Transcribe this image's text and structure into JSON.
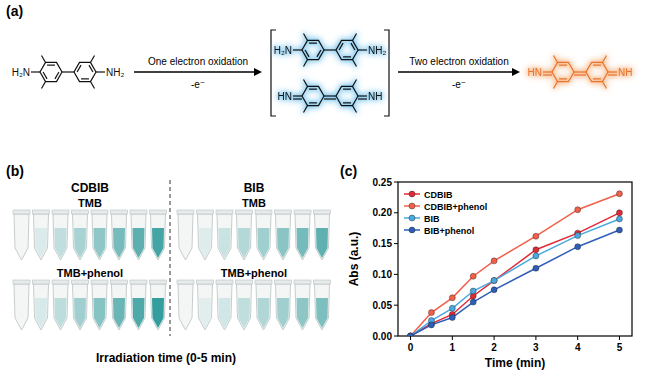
{
  "panels": {
    "a": "(a)",
    "b": "(b)",
    "c": "(c)"
  },
  "scheme": {
    "reactant": {
      "left": "H₂N",
      "right": "NH₂"
    },
    "step1": {
      "label": "One electron oxidation",
      "electron": "-e⁻"
    },
    "intermediate": [
      {
        "left": "H₂N",
        "right": "NH₂"
      },
      {
        "left": "HN",
        "right": "NH"
      }
    ],
    "step2": {
      "label": "Two electron oxidation",
      "electron": "-e⁻"
    },
    "product": {
      "left": "HN",
      "right": "NH"
    }
  },
  "photo": {
    "groups": [
      {
        "title": "CDBIB",
        "rows": [
          "TMB",
          "TMB+phenol"
        ]
      },
      {
        "title": "BIB",
        "rows": [
          "TMB",
          "TMB+phenol"
        ]
      }
    ],
    "caption": "Irradiation time (0-5 min)"
  },
  "chart_data": {
    "type": "line",
    "x_label": "Time (min)",
    "y_label": "Abs (a.u.)",
    "x": [
      0,
      0.5,
      1,
      1.5,
      2,
      3,
      4,
      5
    ],
    "series": [
      {
        "name": "CDBIB",
        "color": "#e02a35",
        "values": [
          0,
          0.02,
          0.035,
          0.065,
          0.09,
          0.14,
          0.167,
          0.2
        ]
      },
      {
        "name": "CDBIB+phenol",
        "color": "#f2604a",
        "values": [
          0,
          0.038,
          0.062,
          0.097,
          0.122,
          0.162,
          0.205,
          0.231
        ]
      },
      {
        "name": "BIB",
        "color": "#4aa8e0",
        "values": [
          0,
          0.025,
          0.045,
          0.073,
          0.09,
          0.13,
          0.163,
          0.19
        ]
      },
      {
        "name": "BIB+phenol",
        "color": "#2e5fb8",
        "values": [
          0,
          0.018,
          0.03,
          0.055,
          0.075,
          0.11,
          0.145,
          0.172
        ]
      }
    ],
    "xlim": [
      -0.3,
      5.3
    ],
    "ylim": [
      0,
      0.25
    ],
    "xticks": [
      0,
      1,
      2,
      3,
      4,
      5
    ],
    "yticks": [
      {
        "value": 0,
        "label": "0.00"
      },
      {
        "value": 0.05,
        "label": "0.05"
      },
      {
        "value": 0.1,
        "label": "0.10"
      },
      {
        "value": 0.15,
        "label": "0.15"
      },
      {
        "value": 0.2,
        "label": "0.20"
      },
      {
        "value": 0.25,
        "label": "0.25"
      }
    ],
    "legend": "top-left",
    "marker": "circle",
    "grid": false
  }
}
